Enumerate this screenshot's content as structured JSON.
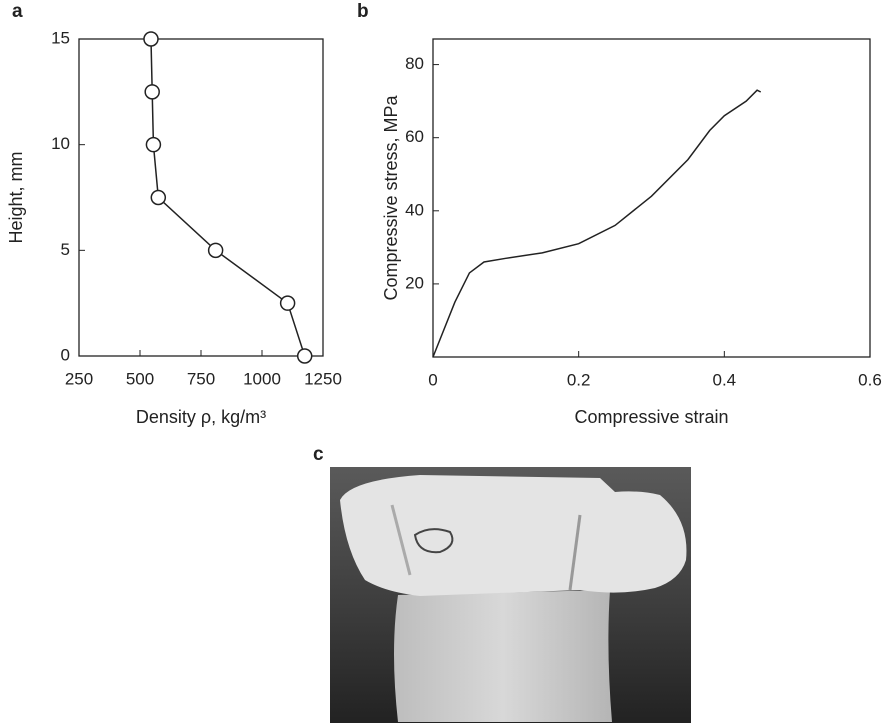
{
  "chart_data": [
    {
      "type": "line",
      "label": "a",
      "xlabel": "Density ρ, kg/m³",
      "ylabel": "Height, mm",
      "x": [
        545,
        550,
        555,
        575,
        810,
        1105,
        1175
      ],
      "values": [
        15,
        12.5,
        10,
        7.5,
        5,
        2.5,
        0
      ],
      "markers": true,
      "color": "#222222",
      "xlim": [
        250,
        1250
      ],
      "xticks": [
        250,
        500,
        750,
        1000,
        1250
      ],
      "ylim": [
        0,
        15
      ],
      "yticks": [
        0,
        5,
        10,
        15
      ]
    },
    {
      "type": "line",
      "label": "b",
      "xlabel": "Compressive strain",
      "ylabel": "Compressive stress, MPa",
      "x": [
        0,
        0.01,
        0.03,
        0.05,
        0.07,
        0.1,
        0.15,
        0.2,
        0.25,
        0.3,
        0.35,
        0.38,
        0.4,
        0.43,
        0.445,
        0.45
      ],
      "values": [
        0,
        5,
        15,
        23,
        26,
        27,
        28.5,
        31,
        36,
        44,
        54,
        62,
        66,
        70,
        73,
        72.5
      ],
      "markers": false,
      "color": "#222222",
      "xlim": [
        0,
        0.6
      ],
      "xticks": [
        0,
        0.2,
        0.4,
        0.6
      ],
      "ylim": [
        0,
        87
      ],
      "yticks": [
        20,
        40,
        60,
        80
      ]
    }
  ],
  "photo": {
    "label": "c"
  }
}
